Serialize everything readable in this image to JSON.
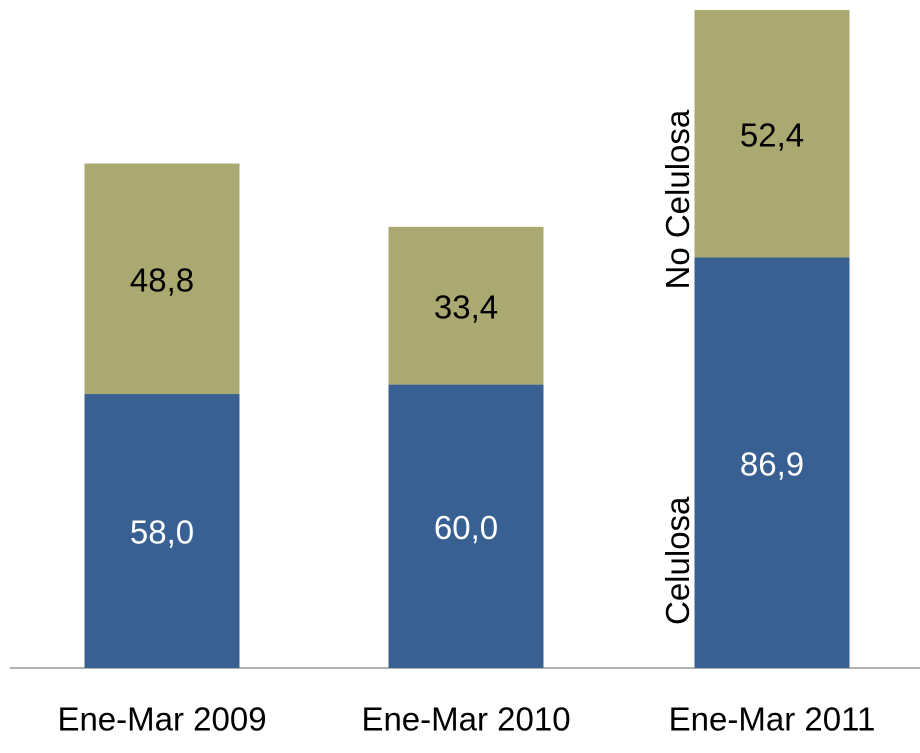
{
  "chart_data": {
    "type": "bar",
    "stacked": true,
    "categories": [
      "Ene-Mar 2009",
      "Ene-Mar 2010",
      "Ene-Mar 2011"
    ],
    "series": [
      {
        "name": "Celulosa",
        "color": "#386092",
        "values": [
          58.0,
          60.0,
          86.9
        ],
        "value_labels": [
          "58,0",
          "60,0",
          "86,9"
        ]
      },
      {
        "name": "No Celulosa",
        "color": "#aaa972",
        "values": [
          48.8,
          33.4,
          52.4
        ],
        "value_labels": [
          "48,8",
          "33,4",
          "52,4"
        ]
      }
    ]
  }
}
